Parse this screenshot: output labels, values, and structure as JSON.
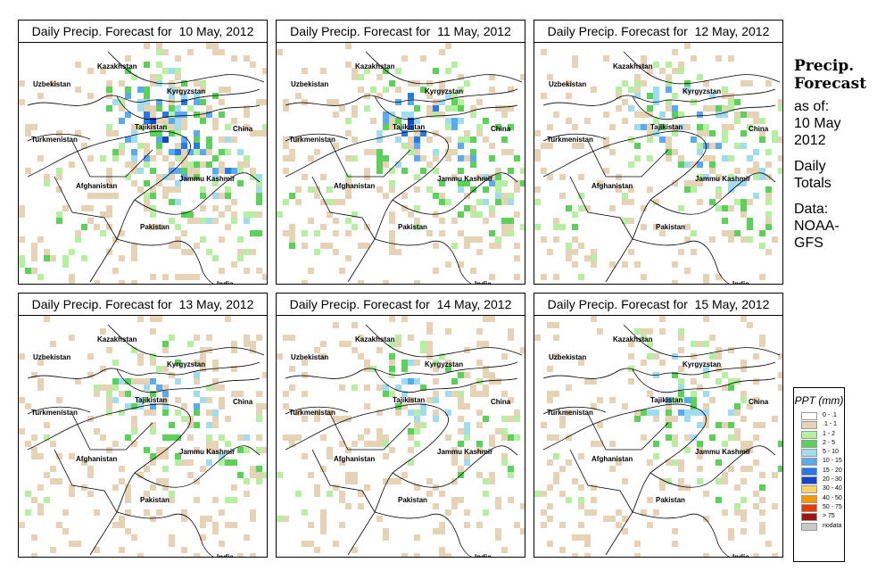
{
  "panels": [
    {
      "title": "Daily Precip. Forecast for  10 May, 2012",
      "wetness": 1.0,
      "seed": 11
    },
    {
      "title": "Daily Precip. Forecast for  11 May, 2012",
      "wetness": 0.85,
      "seed": 23
    },
    {
      "title": "Daily Precip. Forecast for  12 May, 2012",
      "wetness": 0.8,
      "seed": 37
    },
    {
      "title": "Daily Precip. Forecast for  13 May, 2012",
      "wetness": 0.65,
      "seed": 51
    },
    {
      "title": "Daily Precip. Forecast for  14 May, 2012",
      "wetness": 0.55,
      "seed": 67
    },
    {
      "title": "Daily Precip. Forecast for  15 May, 2012",
      "wetness": 0.6,
      "seed": 83
    }
  ],
  "map_labels": {
    "kazakhstan": "Kazakhstan",
    "uzbekistan": "Uzbekistan",
    "kyrgyzstan": "Kyrgyzstan",
    "tajikistan": "Tajikistan",
    "turkmenistan": "Turkmenistan",
    "china": "China",
    "afghanistan": "Afghanistan",
    "jammu_kashmir": "Jammu Kashmir",
    "pakistan": "Pakistan",
    "india": "India"
  },
  "sidebar": {
    "heading_line1": "Precip.",
    "heading_line2": "Forecast",
    "as_of_label": "as of:",
    "as_of_date_line1": "10 May",
    "as_of_date_line2": "2012",
    "totals_line1": "Daily",
    "totals_line2": "Totals",
    "data_label": "Data:",
    "data_source_line1": "NOAA-",
    "data_source_line2": "GFS"
  },
  "legend": {
    "title": "PPT (mm)",
    "items": [
      {
        "range": "0 - .1",
        "color": "#ffffff"
      },
      {
        "range": ".1 - 1",
        "color": "#e6d2b4"
      },
      {
        "range": "1 - 2",
        "color": "#b4f0a0"
      },
      {
        "range": "2 - 5",
        "color": "#5ad25a"
      },
      {
        "range": "5 - 10",
        "color": "#a0dcf0"
      },
      {
        "range": "10 - 15",
        "color": "#5aaaf0"
      },
      {
        "range": "15 - 20",
        "color": "#2878e6"
      },
      {
        "range": "20 - 30",
        "color": "#1446c8"
      },
      {
        "range": "30 - 40",
        "color": "#fad264"
      },
      {
        "range": "40 - 50",
        "color": "#fa9600"
      },
      {
        "range": "50 - 75",
        "color": "#e63c00"
      },
      {
        "range": "> 75",
        "color": "#a01414"
      },
      {
        "range": "nodata",
        "color": "#c8c8c8"
      }
    ]
  }
}
